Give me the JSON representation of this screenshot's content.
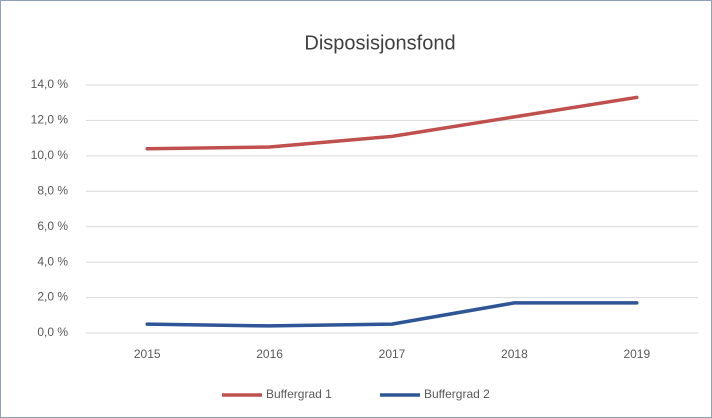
{
  "chart_data": {
    "type": "line",
    "title": "Disposisjonsfond",
    "categories": [
      "2015",
      "2016",
      "2017",
      "2018",
      "2019"
    ],
    "series": [
      {
        "name": "Buffergrad 1",
        "color": "#c0504d",
        "values": [
          10.4,
          10.5,
          11.1,
          12.2,
          13.3
        ]
      },
      {
        "name": "Buffergrad 2",
        "color": "#2e5596",
        "values": [
          0.5,
          0.4,
          0.5,
          1.7,
          1.7
        ]
      }
    ],
    "ylim": [
      0,
      14
    ],
    "yticks": [
      {
        "value": 0,
        "label": "0,0 %"
      },
      {
        "value": 2,
        "label": "2,0 %"
      },
      {
        "value": 4,
        "label": "4,0 %"
      },
      {
        "value": 6,
        "label": "6,0 %"
      },
      {
        "value": 8,
        "label": "8,0 %"
      },
      {
        "value": 10,
        "label": "10,0 %"
      },
      {
        "value": 12,
        "label": "12,0 %"
      },
      {
        "value": 14,
        "label": "14,0 %"
      }
    ],
    "grid": true,
    "legend": "bottom"
  }
}
